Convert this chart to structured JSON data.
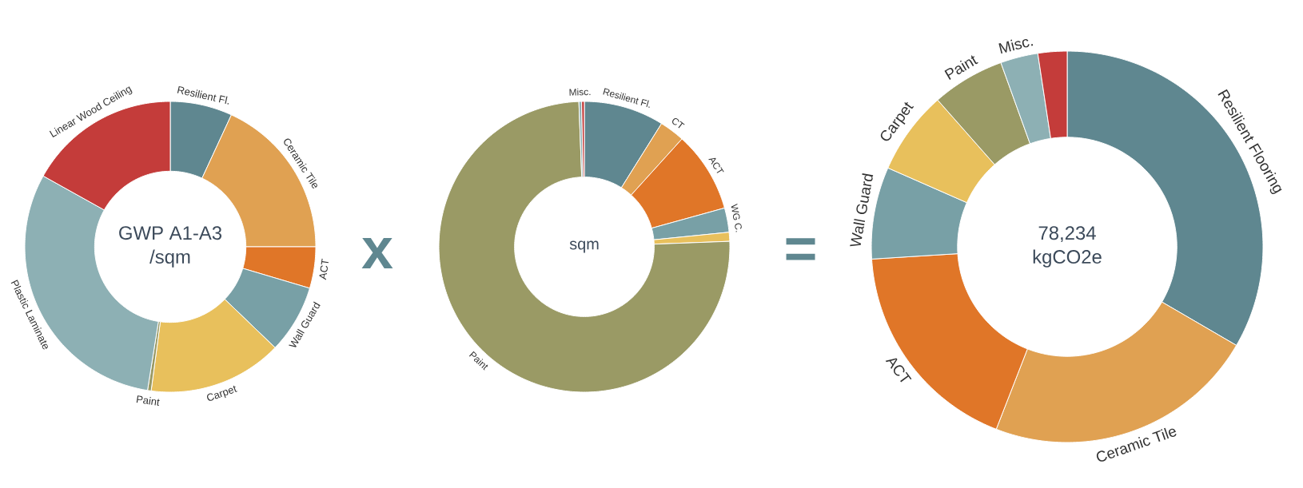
{
  "chart_data": [
    {
      "type": "donut",
      "title": "GWP A1-A3",
      "subtitle": "/sqm",
      "annotations": [
        "x"
      ],
      "categories": [
        "Resilient Fl.",
        "Ceramic Tile",
        "ACT",
        "Wall Guard",
        "Carpet",
        "Paint",
        "Plastic Laminate",
        "Linear Wood Ceiling"
      ],
      "values": [
        6.9,
        18.1,
        4.6,
        7.6,
        14.9,
        0.4,
        30.6,
        16.9
      ],
      "colors": [
        "#5f8790",
        "#e0a152",
        "#e07628",
        "#78a0a6",
        "#e8c05c",
        "#9a9a65",
        "#8db0b4",
        "#c43c3a"
      ]
    },
    {
      "type": "donut",
      "title": "sqm",
      "annotations": [
        "="
      ],
      "categories": [
        "Resilient Fl.",
        "CT",
        "ACT",
        "WG C.",
        null,
        "Paint",
        "Misc.",
        null
      ],
      "values": [
        8.9,
        2.8,
        9.0,
        2.7,
        1.0,
        75.0,
        0.3,
        0.3
      ],
      "colors": [
        "#5f8790",
        "#e0a152",
        "#e07628",
        "#78a0a6",
        "#e8c05c",
        "#9a9a65",
        "#8db0b4",
        "#c43c3a"
      ]
    },
    {
      "type": "donut",
      "title": "78,234",
      "subtitle": "kgCO2e",
      "categories": [
        "Resilient Flooring",
        "Ceramic Tile",
        "ACT",
        "Wall Guard",
        "Carpet",
        "Paint",
        "Misc.",
        null
      ],
      "values": [
        33.4,
        22.5,
        18.1,
        7.6,
        6.9,
        6.0,
        3.1,
        2.4
      ],
      "colors": [
        "#5f8790",
        "#e0a152",
        "#e07628",
        "#78a0a6",
        "#e8c05c",
        "#9a9a65",
        "#8db0b4",
        "#c43c3a"
      ]
    }
  ]
}
